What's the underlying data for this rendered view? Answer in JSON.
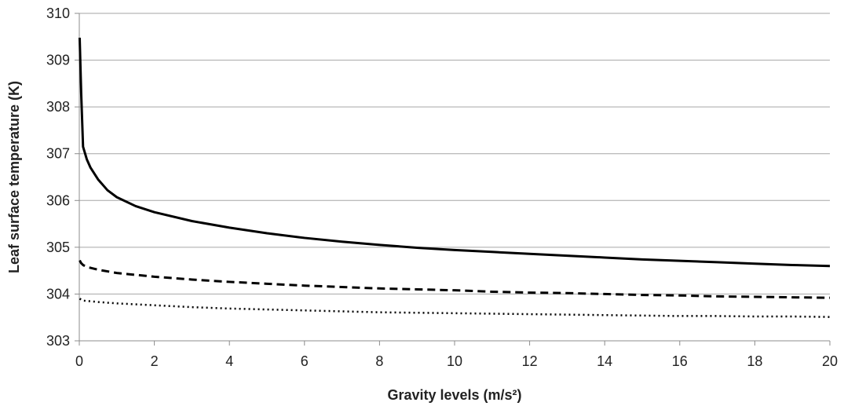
{
  "chart_data": {
    "type": "line",
    "title": "",
    "xlabel": "Gravity levels (m/s²)",
    "ylabel": "Leaf surface temperature (K)",
    "xlim": [
      0,
      20
    ],
    "ylim": [
      303,
      310
    ],
    "x_ticks": [
      "0",
      "2",
      "4",
      "6",
      "8",
      "10",
      "12",
      "14",
      "16",
      "18",
      "20"
    ],
    "y_ticks": [
      "303",
      "304",
      "305",
      "306",
      "307",
      "308",
      "309",
      "310"
    ],
    "grid": "horizontal",
    "legend": "none",
    "series": [
      {
        "style": "solid",
        "color": "#000000",
        "x": [
          0.01,
          0.05,
          0.1,
          0.2,
          0.3,
          0.5,
          0.75,
          1,
          1.5,
          2,
          3,
          4,
          5,
          6,
          7,
          8,
          9,
          10,
          11,
          12,
          13,
          14,
          15,
          16,
          17,
          18,
          19,
          20
        ],
        "y": [
          309.48,
          308.3,
          307.15,
          306.88,
          306.7,
          306.45,
          306.22,
          306.07,
          305.88,
          305.75,
          305.56,
          305.42,
          305.3,
          305.2,
          305.12,
          305.05,
          304.99,
          304.94,
          304.9,
          304.86,
          304.82,
          304.78,
          304.74,
          304.71,
          304.68,
          304.65,
          304.62,
          304.6
        ]
      },
      {
        "style": "dashed",
        "color": "#000000",
        "x": [
          0.01,
          0.05,
          0.1,
          0.2,
          0.5,
          1,
          2,
          3,
          4,
          5,
          6,
          7,
          8,
          9,
          10,
          11,
          12,
          13,
          14,
          15,
          16,
          17,
          18,
          19,
          20
        ],
        "y": [
          304.72,
          304.66,
          304.62,
          304.58,
          304.52,
          304.45,
          304.37,
          304.31,
          304.26,
          304.22,
          304.18,
          304.15,
          304.12,
          304.1,
          304.08,
          304.05,
          304.03,
          304.02,
          304.0,
          303.98,
          303.97,
          303.95,
          303.94,
          303.93,
          303.92
        ]
      },
      {
        "style": "dotted",
        "color": "#000000",
        "x": [
          0.01,
          0.1,
          0.5,
          1,
          2,
          3,
          4,
          5,
          6,
          7,
          8,
          9,
          10,
          11,
          12,
          13,
          14,
          15,
          16,
          17,
          18,
          19,
          20
        ],
        "y": [
          303.9,
          303.86,
          303.83,
          303.8,
          303.76,
          303.72,
          303.69,
          303.67,
          303.65,
          303.63,
          303.61,
          303.6,
          303.59,
          303.58,
          303.57,
          303.56,
          303.55,
          303.54,
          303.53,
          303.53,
          303.52,
          303.52,
          303.51
        ]
      }
    ]
  }
}
